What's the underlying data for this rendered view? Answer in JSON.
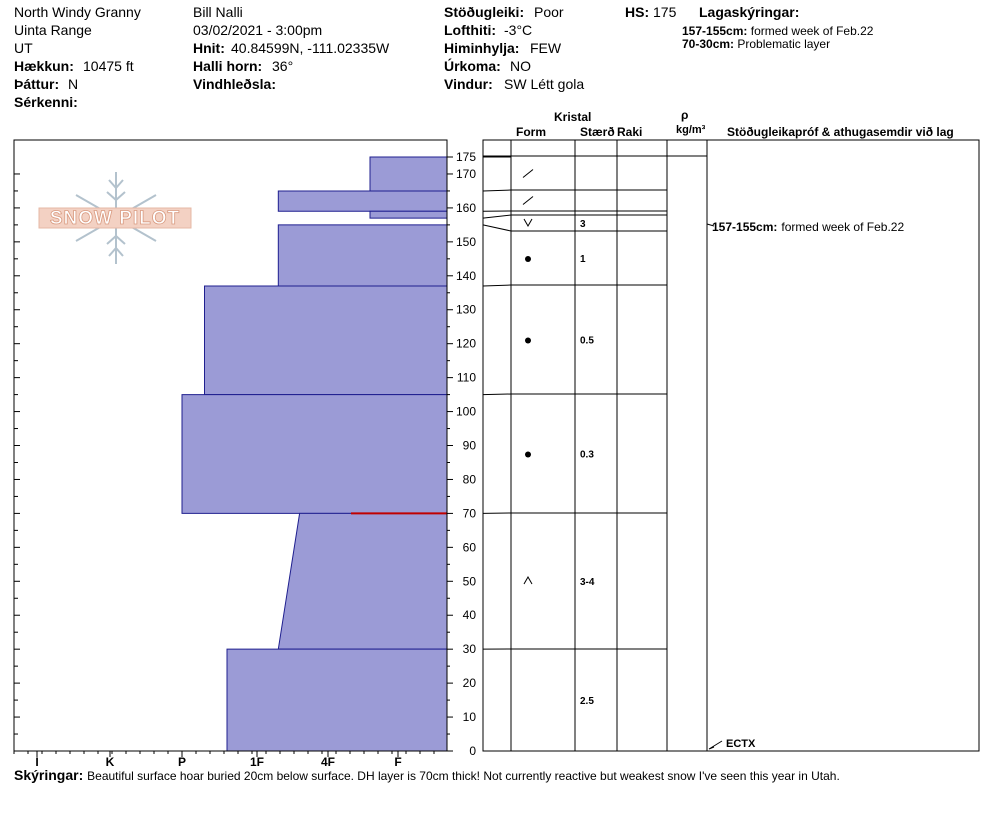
{
  "header": {
    "location": "North Windy Granny",
    "range": "Uinta Range",
    "state": "UT",
    "elevation_label": "Hækkun:",
    "elevation_value": "10475 ft",
    "aspect_label": "Þáttur:",
    "aspect_value": "N",
    "features_label": "Sérkenni:",
    "observer": "Bill Nalli",
    "datetime": "03/02/2021 - 3:00pm",
    "coords_label": "Hnit:",
    "coords_value": "40.84599N, -111.02335W",
    "slope_label": "Halli horn:",
    "slope_value": "36°",
    "wind_loading_label": "Vindhleðsla:",
    "stability_label": "Stöðugleiki:",
    "stability_value": "Poor",
    "air_temp_label": "Lofthiti:",
    "air_temp_value": "-3°C",
    "sky_label": "Himinhylja:",
    "sky_value": "FEW",
    "precip_label": "Úrkoma:",
    "precip_value": "NO",
    "wind_label": "Vindur:",
    "wind_value": "SW Létt gola",
    "hs_label": "HS:",
    "hs_value": "175",
    "layer_notes_label": "Lagaskýringar:",
    "layer_notes": [
      {
        "range": "157-155cm:",
        "text": "formed week of Feb.22"
      },
      {
        "range": "70-30cm:",
        "text": "Problematic layer"
      }
    ]
  },
  "logo_text": "SNOW PILOT",
  "columns": {
    "crystal": "Kristal",
    "form": "Form",
    "size": "Stærð",
    "moisture": "Raki",
    "density_symbol": "ρ",
    "density_unit": "kg/m³",
    "stability_tests": "Stöðugleikapróf & athugasemdir við lag"
  },
  "comment": {
    "label": "Skýringar:",
    "text": "Beautiful surface hoar buried 20cm below surface. DH layer is 70cm thick! Not currently reactive but weakest snow I've seen this year in Utah."
  },
  "test_note": {
    "range": "157-155cm:",
    "text": "formed week of Feb.22"
  },
  "test_result": "ECTX",
  "colors": {
    "hardness_fill": "#9b9bd6",
    "hardness_stroke": "#1f1f8f",
    "weak_layer": "#c00000"
  },
  "chart_data": {
    "type": "snow-profile",
    "y_axis": {
      "unit": "cm",
      "range": [
        0,
        175
      ],
      "ticks": [
        0,
        10,
        20,
        30,
        40,
        50,
        60,
        70,
        80,
        90,
        100,
        110,
        120,
        130,
        140,
        150,
        160,
        170,
        175
      ]
    },
    "hardness_scale": [
      "I",
      "K",
      "P",
      "1F",
      "4F",
      "F"
    ],
    "layers": [
      {
        "top": 175,
        "bottom": 165,
        "hardness_top": 0.4,
        "hardness_bottom": 0.4,
        "form": "precip-particles",
        "size": ""
      },
      {
        "top": 165,
        "bottom": 159,
        "hardness_top": 1.7,
        "hardness_bottom": 1.7,
        "form": "precip-particles",
        "size": ""
      },
      {
        "top": 159,
        "bottom": 157,
        "hardness_top": 0.4,
        "hardness_bottom": 0.4,
        "form": "",
        "size": ""
      },
      {
        "top": 157,
        "bottom": 155,
        "hardness_top": 0.0,
        "hardness_bottom": 0.0,
        "form": "surface-hoar",
        "size": "3"
      },
      {
        "top": 155,
        "bottom": 137,
        "hardness_top": 1.7,
        "hardness_bottom": 1.7,
        "form": "rounded-grains",
        "size": "1"
      },
      {
        "top": 137,
        "bottom": 105,
        "hardness_top": 2.7,
        "hardness_bottom": 2.7,
        "form": "rounded-grains",
        "size": "0.5"
      },
      {
        "top": 105,
        "bottom": 70,
        "hardness_top": 3.0,
        "hardness_bottom": 3.0,
        "form": "rounded-grains",
        "size": "0.3"
      },
      {
        "top": 70,
        "bottom": 30,
        "hardness_top": 1.4,
        "hardness_bottom": 1.7,
        "form": "depth-hoar",
        "size": "3-4"
      },
      {
        "top": 30,
        "bottom": 0,
        "hardness_top": 2.4,
        "hardness_bottom": 2.4,
        "form": "",
        "size": "2.5"
      }
    ],
    "weak_layer_depth": 70,
    "test_depth": 0
  }
}
